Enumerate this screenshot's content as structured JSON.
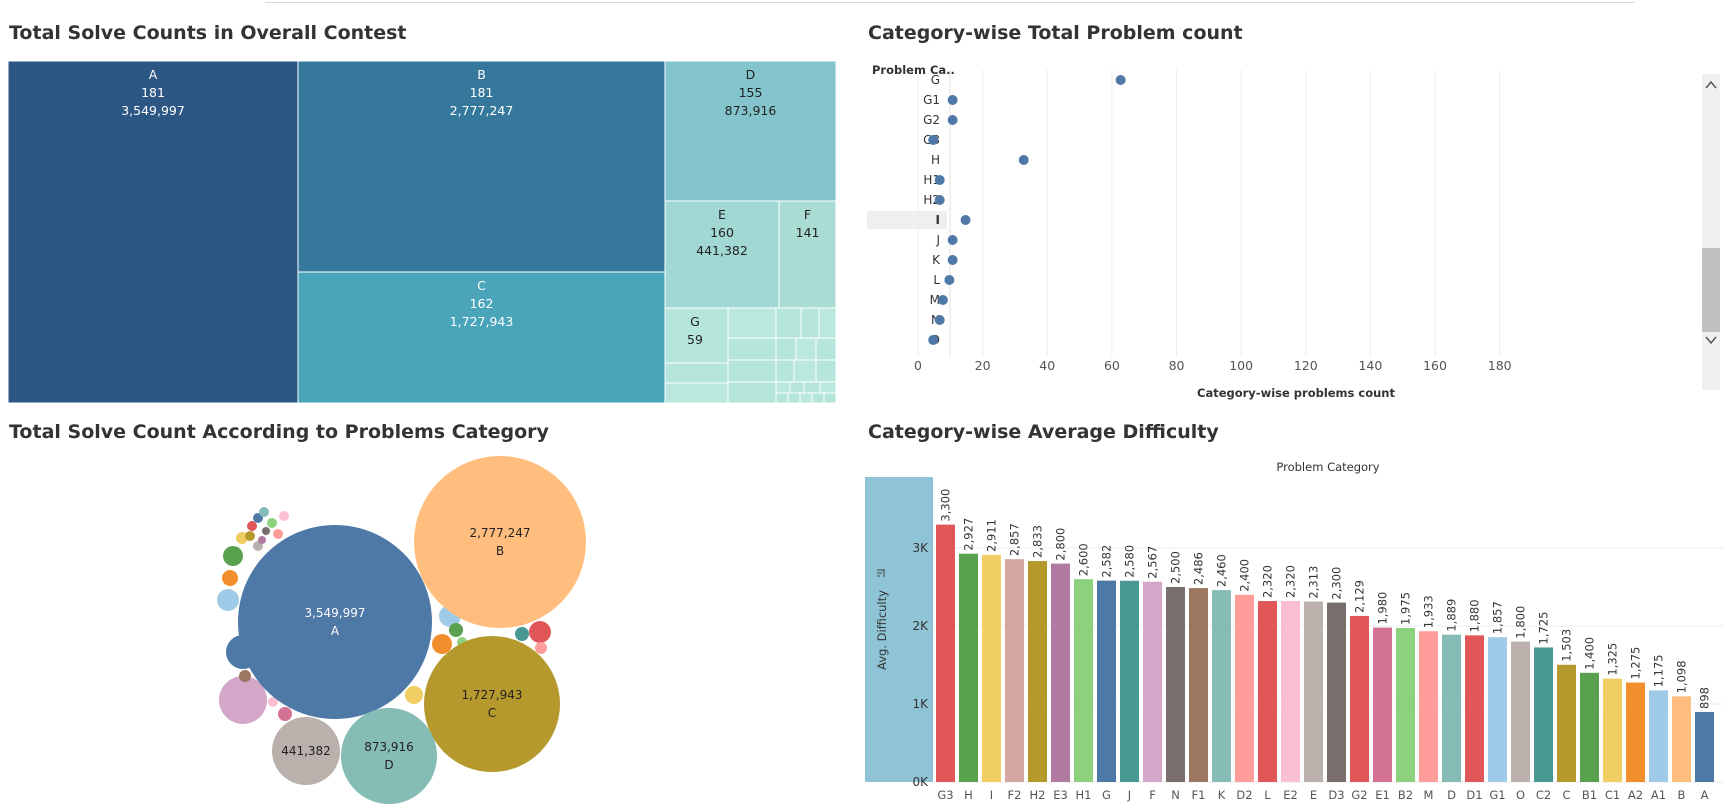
{
  "titles": {
    "treemap": "Total Solve Counts in Overall Contest",
    "dot": "Category-wise Total Problem count",
    "bubble": "Total Solve Count According to Problems Category",
    "bar": "Category-wise Average Difficulty"
  },
  "chart_data": [
    {
      "id": "treemap",
      "type": "treemap",
      "title": "Total Solve Counts in Overall Contest",
      "labelled_tiles": [
        {
          "label": "A",
          "count": "181",
          "solves": "3,549,997",
          "color": "#2c5784"
        },
        {
          "label": "B",
          "count": "181",
          "solves": "2,777,247",
          "color": "#35789c"
        },
        {
          "label": "C",
          "count": "162",
          "solves": "1,727,943",
          "color": "#4aa4ba"
        },
        {
          "label": "D",
          "count": "155",
          "solves": "873,916",
          "color": "#84c4cc"
        },
        {
          "label": "E",
          "count": "160",
          "solves": "441,382",
          "color": "#a2d8d3"
        },
        {
          "label": "F",
          "count": "141",
          "solves": "",
          "color": "#a9dcd2"
        },
        {
          "label": "G",
          "count": "59",
          "solves": "",
          "color": "#b5e5db"
        }
      ]
    },
    {
      "id": "dot",
      "type": "scatter",
      "title": "Category-wise Total Problem count",
      "row_header": "Problem Ca..",
      "xlabel": "Category-wise problems count",
      "xlim": [
        0,
        190
      ],
      "xticks": [
        "0",
        "20",
        "40",
        "60",
        "80",
        "100",
        "120",
        "140",
        "160",
        "180"
      ],
      "highlighted": "I",
      "categories": [
        "G",
        "G1",
        "G2",
        "G3",
        "H",
        "H1",
        "H2",
        "I",
        "J",
        "K",
        "L",
        "M",
        "N",
        "O"
      ],
      "values": [
        59,
        7,
        7,
        1,
        29,
        3,
        3,
        11,
        7,
        7,
        6,
        4,
        3,
        1
      ],
      "color": "#4e79a7"
    },
    {
      "id": "bubble",
      "type": "bubble",
      "title": "Total Solve Count According to Problems Category",
      "labelled": [
        {
          "category": "A",
          "value": "3,549,997",
          "color": "#4e79a7"
        },
        {
          "category": "B",
          "value": "2,777,247",
          "color": "#ffbe7d"
        },
        {
          "category": "C",
          "value": "1,727,943",
          "color": "#b6992d"
        },
        {
          "category": "D",
          "value": "873,916",
          "color": "#86bcb6"
        },
        {
          "category": "",
          "value": "441,382",
          "color": "#bab0ac"
        }
      ]
    },
    {
      "id": "bar",
      "type": "bar",
      "title": "Category-wise Average Difficulty",
      "column_header": "Problem Category",
      "ylabel": "Avg. Difficulty",
      "ylim": [
        0,
        3900
      ],
      "yticks": [
        {
          "v": 0,
          "t": "0K"
        },
        {
          "v": 1000,
          "t": "1K"
        },
        {
          "v": 2000,
          "t": "2K"
        },
        {
          "v": 3000,
          "t": "3K"
        }
      ],
      "categories": [
        "G3",
        "H",
        "I",
        "F2",
        "H2",
        "E3",
        "H1",
        "G",
        "J",
        "F",
        "N",
        "F1",
        "K",
        "D2",
        "L",
        "E2",
        "E",
        "D3",
        "G2",
        "E1",
        "B2",
        "M",
        "D",
        "D1",
        "G1",
        "O",
        "C2",
        "C",
        "B1",
        "C1",
        "A2",
        "A1",
        "B",
        "A"
      ],
      "values": [
        3300,
        2927,
        2911,
        2857,
        2833,
        2800,
        2600,
        2582,
        2580,
        2567,
        2500,
        2486,
        2460,
        2400,
        2320,
        2320,
        2313,
        2300,
        2129,
        1980,
        1975,
        1933,
        1889,
        1880,
        1857,
        1800,
        1725,
        1503,
        1400,
        1325,
        1275,
        1175,
        1098,
        898
      ],
      "value_labels": [
        "3,300",
        "2,927",
        "2,911",
        "2,857",
        "2,833",
        "2,800",
        "2,600",
        "2,582",
        "2,580",
        "2,567",
        "2,500",
        "2,486",
        "2,460",
        "2,400",
        "2,320",
        "2,320",
        "2,313",
        "2,300",
        "2,129",
        "1,980",
        "1,975",
        "1,933",
        "1,889",
        "1,880",
        "1,857",
        "1,800",
        "1,725",
        "1,503",
        "1,400",
        "1,325",
        "1,275",
        "1,175",
        "1,098",
        "898"
      ],
      "colors": [
        "#e15759",
        "#59a14f",
        "#f1ce63",
        "#d4a6a0",
        "#b6992d",
        "#b07aa1",
        "#8cd17d",
        "#4e79a7",
        "#499894",
        "#d4a6c8",
        "#79706e",
        "#9d7660",
        "#86bcb6",
        "#ff9d9a",
        "#e15759",
        "#fabfd2",
        "#bab0ac",
        "#79706e",
        "#e15759",
        "#d37295",
        "#8cd17d",
        "#ff9d9a",
        "#86bcb6",
        "#e15759",
        "#a0cbe8",
        "#bab0ac",
        "#499894",
        "#b6992d",
        "#59a14f",
        "#f1ce63",
        "#f28e2b",
        "#a0cbe8",
        "#ffbe7d",
        "#4e79a7"
      ]
    }
  ]
}
